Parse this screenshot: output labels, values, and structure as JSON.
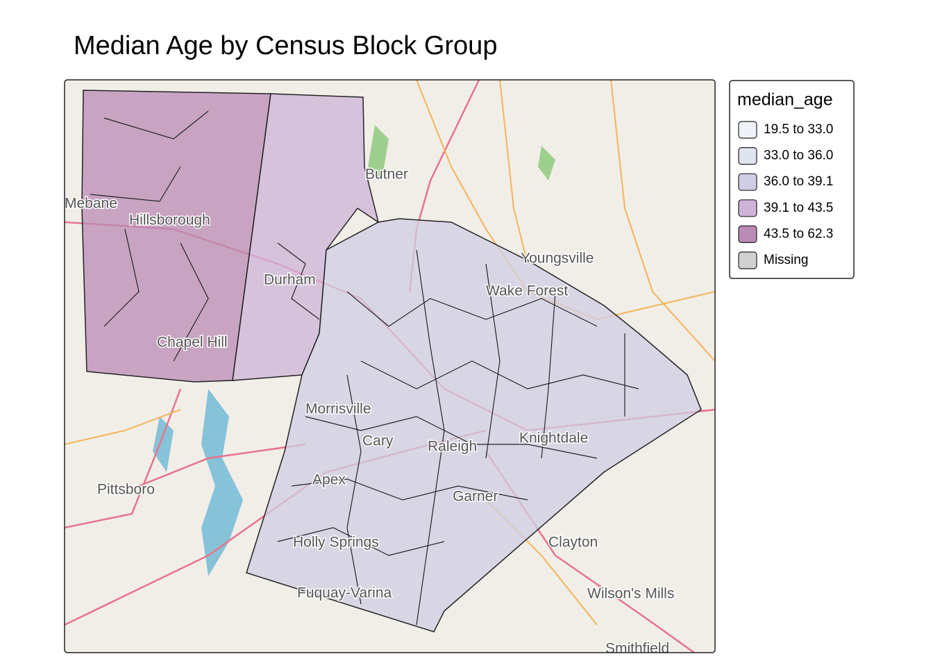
{
  "title": "Median Age by Census Block Group",
  "map": {
    "place_labels": [
      "Butner",
      "Mebane",
      "Hillsborough",
      "Youngsville",
      "Durham",
      "Wake Forest",
      "Chapel Hill",
      "Morrisville",
      "Cary",
      "Raleigh",
      "Knightdale",
      "Pittsboro",
      "Apex",
      "Garner",
      "Clayton",
      "Holly Springs",
      "Fuquay-Varina",
      "Wilson's Mills",
      "Smithfield"
    ],
    "legend": {
      "title": "median_age",
      "items": [
        {
          "label": "19.5 to 33.0",
          "color": "#eef2f6"
        },
        {
          "label": "33.0 to 36.0",
          "color": "#dfe4ef"
        },
        {
          "label": "36.0 to 39.1",
          "color": "#cfcde4"
        },
        {
          "label": "39.1 to 43.5",
          "color": "#cdb3d8"
        },
        {
          "label": "43.5 to 62.3",
          "color": "#b98bb5"
        },
        {
          "label": "Missing",
          "color": "#d0d0d0"
        }
      ]
    }
  }
}
